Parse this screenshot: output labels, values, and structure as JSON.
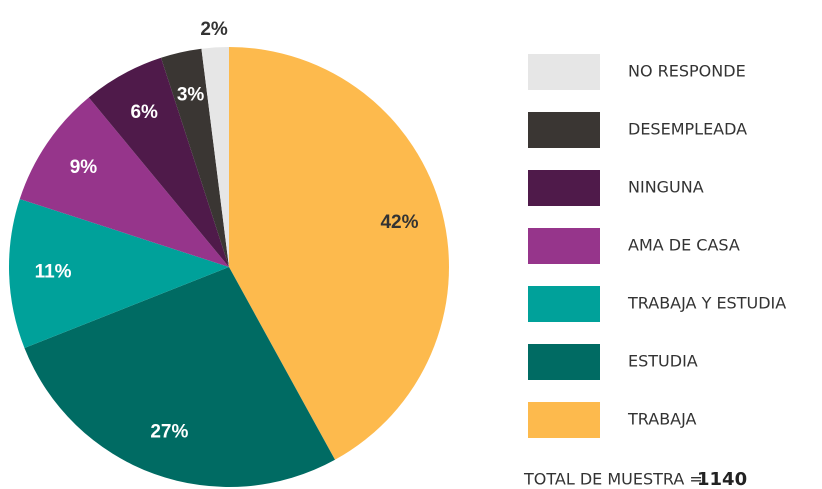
{
  "chart_data": {
    "type": "pie",
    "categories": [
      "TRABAJA",
      "ESTUDIA",
      "TRABAJA Y ESTUDIA",
      "AMA DE CASA",
      "NINGUNA",
      "DESEMPLEADA",
      "NO RESPONDE"
    ],
    "values": [
      42,
      27,
      11,
      9,
      6,
      3,
      2
    ],
    "value_labels": [
      "42%",
      "27%",
      "11%",
      "9%",
      "6%",
      "3%",
      "2%"
    ],
    "colors": [
      "#fdba4d",
      "#006b63",
      "#00a19a",
      "#96358b",
      "#4f1a4a",
      "#3a3633",
      "#e6e6e6"
    ],
    "label_colors": [
      "#333333",
      "#ffffff",
      "#ffffff",
      "#ffffff",
      "#ffffff",
      "#ffffff",
      "#333333"
    ],
    "total_label": "TOTAL DE MUESTRA =",
    "total_value": 1140
  }
}
